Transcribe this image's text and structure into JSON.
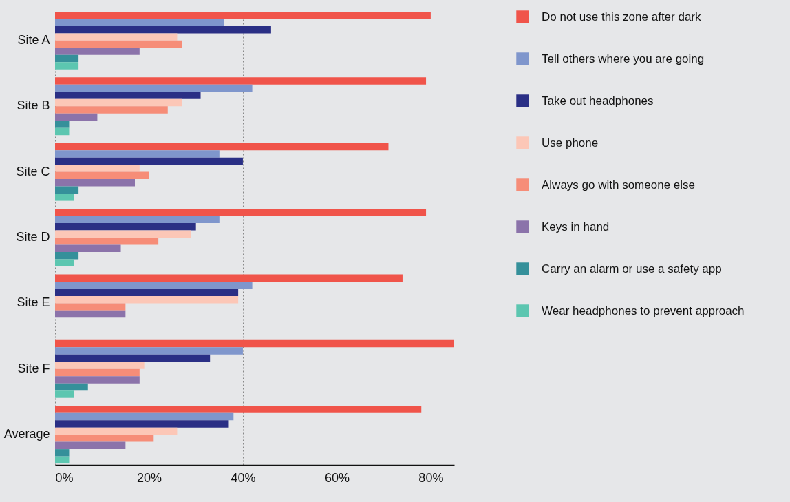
{
  "chart_data": {
    "type": "bar",
    "orientation": "horizontal",
    "categories": [
      "Site A",
      "Site B",
      "Site C",
      "Site D",
      "Site E",
      "Site F",
      "Average"
    ],
    "series": [
      {
        "name": "Do not use this zone after dark",
        "color": "#f0544a",
        "values": [
          80,
          79,
          71,
          79,
          74,
          85,
          78
        ]
      },
      {
        "name": "Tell others where you are going",
        "color": "#7f96cc",
        "values": [
          36,
          42,
          35,
          35,
          42,
          40,
          38
        ]
      },
      {
        "name": "Take out headphones",
        "color": "#2a2f85",
        "values": [
          46,
          31,
          40,
          30,
          39,
          33,
          37
        ]
      },
      {
        "name": "Use phone",
        "color": "#fcc7b7",
        "values": [
          26,
          27,
          18,
          29,
          39,
          19,
          26
        ]
      },
      {
        "name": "Always go with someone else",
        "color": "#f68d78",
        "values": [
          27,
          24,
          20,
          22,
          15,
          18,
          21
        ]
      },
      {
        "name": "Keys in hand",
        "color": "#8b73aa",
        "values": [
          18,
          9,
          17,
          14,
          15,
          18,
          15
        ]
      },
      {
        "name": "Carry an alarm or use a safety app",
        "color": "#35909a",
        "values": [
          5,
          3,
          5,
          5,
          0,
          7,
          3
        ]
      },
      {
        "name": "Wear headphones to prevent approach",
        "color": "#5cc6b0",
        "values": [
          5,
          3,
          4,
          4,
          0,
          4,
          3
        ]
      }
    ],
    "xlim": [
      0,
      85
    ],
    "xticks": [
      {
        "value": 0,
        "label": "0%"
      },
      {
        "value": 20,
        "label": "20%"
      },
      {
        "value": 40,
        "label": "40%"
      },
      {
        "value": 60,
        "label": "60%"
      },
      {
        "value": 80,
        "label": "80%"
      }
    ],
    "grid": "x",
    "legend": "right"
  }
}
